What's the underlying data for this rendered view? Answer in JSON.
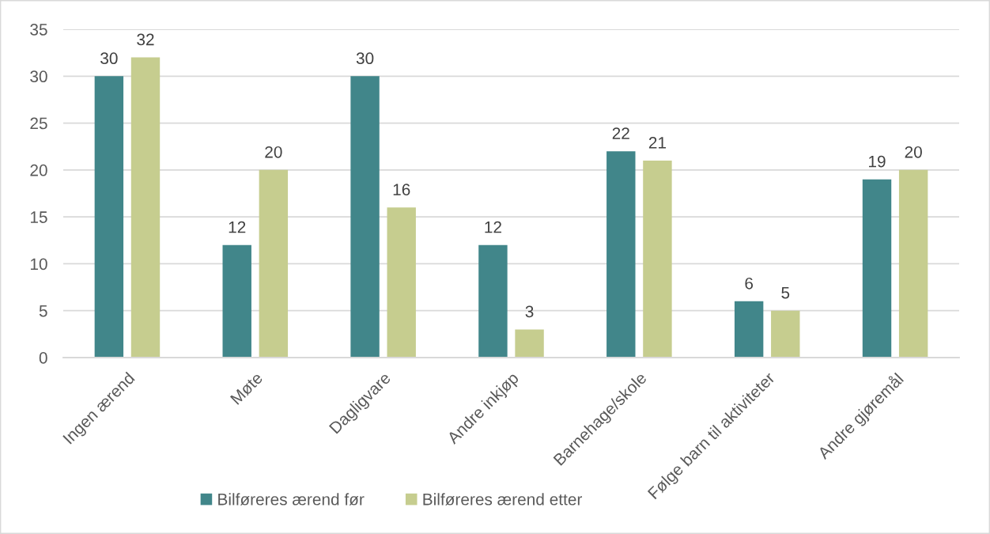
{
  "chart_data": {
    "type": "bar",
    "categories": [
      "Ingen ærend",
      "Møte",
      "Dagligvare",
      "Andre inkjøp",
      "Barnehage/skole",
      "Følge barn til aktiviteter",
      "Andre gjøremål"
    ],
    "series": [
      {
        "name": "Bilføreres ærend før",
        "color": "#41868a",
        "values": [
          30,
          12,
          30,
          12,
          22,
          6,
          19
        ]
      },
      {
        "name": "Bilføreres ærend etter",
        "color": "#c6cd8f",
        "values": [
          32,
          20,
          16,
          3,
          21,
          5,
          20
        ]
      }
    ],
    "ylim": [
      0,
      35
    ],
    "yticks": [
      0,
      5,
      10,
      15,
      20,
      25,
      30,
      35
    ],
    "grid": "y",
    "legend": "bottom",
    "data_labels": true
  }
}
